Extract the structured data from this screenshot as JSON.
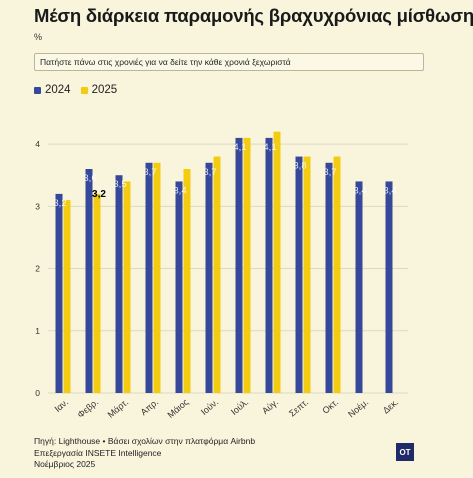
{
  "header": {
    "title": "Μέση διάρκεια παραμονής βραχυχρόνιας μίσθωσης",
    "unit": "%",
    "hint": "Πατήστε πάνω στις χρονιές για να δείτε την κάθε χρονιά ξεχωριστά"
  },
  "colors": {
    "series_2024": "#35489a",
    "series_2025": "#f3cc12",
    "grid": "#ddd9c0"
  },
  "chart_data": {
    "type": "bar",
    "categories": [
      "Ιαν.",
      "Φεβρ.",
      "Μάρτ.",
      "Απρ.",
      "Μάιος",
      "Ιούν.",
      "Ιούλ.",
      "Αύγ.",
      "Σεπτ.",
      "Οκτ.",
      "Νοέμ.",
      "Δεκ."
    ],
    "series": [
      {
        "name": "2024",
        "values": [
          3.2,
          3.6,
          3.5,
          3.7,
          3.4,
          3.7,
          4.1,
          4.1,
          3.8,
          3.7,
          3.4,
          3.4
        ],
        "labels": [
          "3,2",
          "3,6",
          "3,5",
          "3,7",
          "3,4",
          "3,7",
          "4,1",
          "4,1",
          "3,8",
          "3,7",
          "3,4",
          "3,4"
        ]
      },
      {
        "name": "2025",
        "values": [
          3.1,
          3.2,
          3.4,
          3.7,
          3.6,
          3.8,
          4.1,
          4.2,
          3.8,
          3.8,
          null,
          null
        ]
      }
    ],
    "highlight_label": "3,2",
    "yticks": [
      "0",
      "1",
      "2",
      "3",
      "4"
    ],
    "ylim": [
      0,
      4.5
    ],
    "grid": true,
    "legend_position": "top-left"
  },
  "footer": {
    "source": "Πηγή: Lighthouse • Βάσει σχολίων στην πλατφόρμα Airbnb",
    "processing": "Επεξεργασία INSETE Intelligence",
    "date": "Νοέμβριος 2025",
    "logo": "OT"
  }
}
